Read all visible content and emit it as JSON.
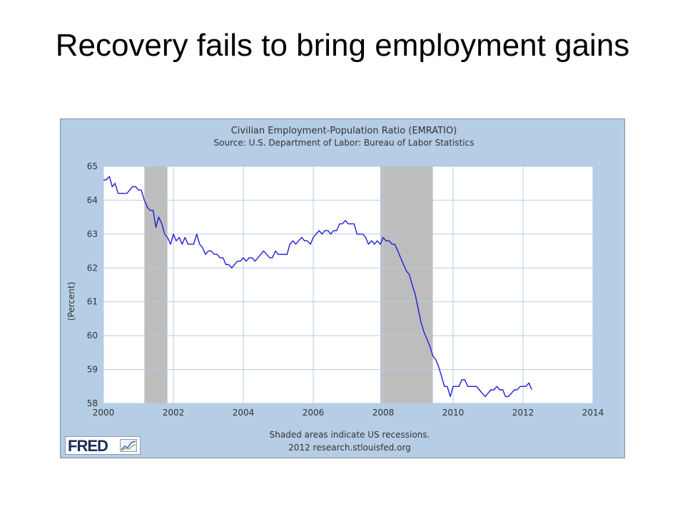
{
  "slide": {
    "title": "Recovery fails to bring employment gains"
  },
  "logo": {
    "text": "FRED",
    "mark_icon": "small-line-chart-icon"
  },
  "colors": {
    "panel_background": "#b5cde5",
    "plot_background": "#ffffff",
    "grid": "#b5cde5",
    "recession_shading": "#bdbdbd",
    "series_line": "#1f1fd6"
  },
  "chart_data": {
    "type": "line",
    "title": "Civilian Employment-Population Ratio (EMRATIO)",
    "subtitle": "Source: U.S. Department of Labor: Bureau of Labor Statistics",
    "xlabel": "",
    "ylabel": "(Percent)",
    "xlim": [
      2000,
      2014
    ],
    "ylim": [
      58,
      65
    ],
    "x_ticks": [
      "2000",
      "2002",
      "2004",
      "2006",
      "2008",
      "2010",
      "2012",
      "2014"
    ],
    "y_ticks": [
      "58",
      "59",
      "60",
      "61",
      "62",
      "63",
      "64",
      "65"
    ],
    "grid": true,
    "legend": "none",
    "footnote": "Shaded areas indicate US recessions.",
    "credit": "2012 research.stlouisfed.org",
    "recessions": [
      {
        "start": 2001.17,
        "end": 2001.83
      },
      {
        "start": 2007.92,
        "end": 2009.42
      }
    ],
    "series": [
      {
        "x": [
          2000.0,
          2000.08,
          2000.17,
          2000.25,
          2000.33,
          2000.42,
          2000.5,
          2000.58,
          2000.67,
          2000.75,
          2000.83,
          2000.92,
          2001.0,
          2001.08,
          2001.17,
          2001.25,
          2001.33,
          2001.42,
          2001.5,
          2001.58,
          2001.67,
          2001.75,
          2001.83,
          2001.92,
          2002.0,
          2002.08,
          2002.17,
          2002.25,
          2002.33,
          2002.42,
          2002.5,
          2002.58,
          2002.67,
          2002.75,
          2002.83,
          2002.92,
          2003.0,
          2003.08,
          2003.17,
          2003.25,
          2003.33,
          2003.42,
          2003.5,
          2003.58,
          2003.67,
          2003.75,
          2003.83,
          2003.92,
          2004.0,
          2004.08,
          2004.17,
          2004.25,
          2004.33,
          2004.42,
          2004.5,
          2004.58,
          2004.67,
          2004.75,
          2004.83,
          2004.92,
          2005.0,
          2005.08,
          2005.17,
          2005.25,
          2005.33,
          2005.42,
          2005.5,
          2005.58,
          2005.67,
          2005.75,
          2005.83,
          2005.92,
          2006.0,
          2006.08,
          2006.17,
          2006.25,
          2006.33,
          2006.42,
          2006.5,
          2006.58,
          2006.67,
          2006.75,
          2006.83,
          2006.92,
          2007.0,
          2007.08,
          2007.17,
          2007.25,
          2007.33,
          2007.42,
          2007.5,
          2007.58,
          2007.67,
          2007.75,
          2007.83,
          2007.92,
          2008.0,
          2008.08,
          2008.17,
          2008.25,
          2008.33,
          2008.42,
          2008.5,
          2008.58,
          2008.67,
          2008.75,
          2008.83,
          2008.92,
          2009.0,
          2009.08,
          2009.17,
          2009.25,
          2009.33,
          2009.42,
          2009.5,
          2009.58,
          2009.67,
          2009.75,
          2009.83,
          2009.92,
          2010.0,
          2010.08,
          2010.17,
          2010.25,
          2010.33,
          2010.42,
          2010.5,
          2010.58,
          2010.67,
          2010.75,
          2010.83,
          2010.92,
          2011.0,
          2011.08,
          2011.17,
          2011.25,
          2011.33,
          2011.42,
          2011.5,
          2011.58,
          2011.67,
          2011.75,
          2011.83,
          2011.92,
          2012.0,
          2012.08,
          2012.17,
          2012.25
        ],
        "values": [
          64.6,
          64.6,
          64.7,
          64.4,
          64.5,
          64.2,
          64.2,
          64.2,
          64.2,
          64.3,
          64.4,
          64.4,
          64.3,
          64.3,
          64.0,
          63.8,
          63.7,
          63.7,
          63.2,
          63.5,
          63.3,
          63.0,
          62.9,
          62.7,
          63.0,
          62.8,
          62.9,
          62.7,
          62.9,
          62.7,
          62.7,
          62.7,
          63.0,
          62.7,
          62.6,
          62.4,
          62.5,
          62.5,
          62.4,
          62.4,
          62.3,
          62.3,
          62.1,
          62.1,
          62.0,
          62.1,
          62.2,
          62.2,
          62.3,
          62.2,
          62.3,
          62.3,
          62.2,
          62.3,
          62.4,
          62.5,
          62.4,
          62.3,
          62.3,
          62.5,
          62.4,
          62.4,
          62.4,
          62.4,
          62.7,
          62.8,
          62.7,
          62.8,
          62.9,
          62.8,
          62.8,
          62.7,
          62.9,
          63.0,
          63.1,
          63.0,
          63.1,
          63.1,
          63.0,
          63.1,
          63.1,
          63.3,
          63.3,
          63.4,
          63.3,
          63.3,
          63.3,
          63.0,
          63.0,
          63.0,
          62.9,
          62.7,
          62.8,
          62.7,
          62.8,
          62.7,
          62.9,
          62.8,
          62.8,
          62.7,
          62.7,
          62.5,
          62.3,
          62.1,
          61.9,
          61.8,
          61.5,
          61.2,
          60.8,
          60.4,
          60.1,
          59.9,
          59.7,
          59.4,
          59.3,
          59.1,
          58.8,
          58.5,
          58.5,
          58.2,
          58.5,
          58.5,
          58.5,
          58.7,
          58.7,
          58.5,
          58.5,
          58.5,
          58.5,
          58.4,
          58.3,
          58.2,
          58.3,
          58.4,
          58.4,
          58.5,
          58.4,
          58.4,
          58.2,
          58.2,
          58.3,
          58.4,
          58.4,
          58.5,
          58.5,
          58.5,
          58.6,
          58.4
        ]
      }
    ]
  }
}
